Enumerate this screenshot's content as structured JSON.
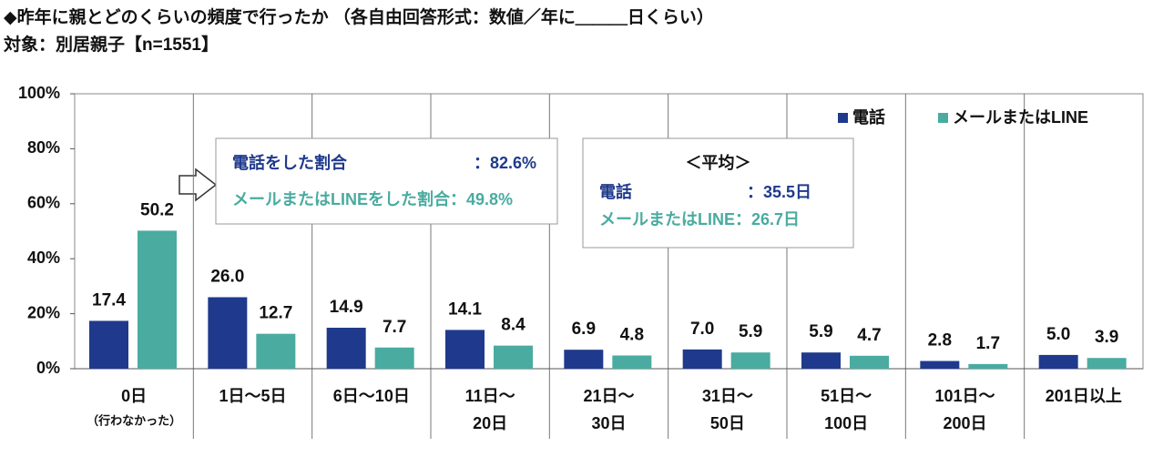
{
  "chart_data": {
    "type": "bar",
    "title": "◆昨年に親とどのくらいの頻度で行ったか （各自由回答形式：数値／年に＿＿＿日くらい）",
    "subtitle": "対象：別居親子【n=1551】",
    "categories": [
      [
        "0日",
        "（行わなかった）"
      ],
      [
        "1日～5日"
      ],
      [
        "6日～10日"
      ],
      [
        "11日～",
        "20日"
      ],
      [
        "21日～",
        "30日"
      ],
      [
        "31日～",
        "50日"
      ],
      [
        "51日～",
        "100日"
      ],
      [
        "101日～",
        "200日"
      ],
      [
        "201日以上"
      ]
    ],
    "series": [
      {
        "name": "電話",
        "color": "#1f3a8c",
        "values": [
          17.4,
          26.0,
          14.9,
          14.1,
          6.9,
          7.0,
          5.9,
          2.8,
          5.0
        ],
        "value_labels": [
          "17.4",
          "26.0",
          "14.9",
          "14.1",
          "6.9",
          "7.0",
          "5.9",
          "2.8",
          "5.0"
        ]
      },
      {
        "name": "メールまたはLINE",
        "color": "#4aaba0",
        "values": [
          50.2,
          12.7,
          7.7,
          8.4,
          4.8,
          5.9,
          4.7,
          1.7,
          3.9
        ],
        "value_labels": [
          "50.2",
          "12.7",
          "7.7",
          "8.4",
          "4.8",
          "5.9",
          "4.7",
          "1.7",
          "3.9"
        ]
      }
    ],
    "ylim": [
      0,
      100
    ],
    "yticks": [
      {
        "value": 0,
        "label": "0%"
      },
      {
        "value": 20,
        "label": "20%"
      },
      {
        "value": 40,
        "label": "40%"
      },
      {
        "value": 60,
        "label": "60%"
      },
      {
        "value": 80,
        "label": "80%"
      },
      {
        "value": 100,
        "label": "100%"
      }
    ],
    "grid": false,
    "legend": "top-right",
    "annotations": [
      {
        "heading": null,
        "rows": [
          {
            "label": "電話をした割合",
            "value": "：82.6%"
          },
          {
            "label": "メールまたはLINEをした割合",
            "value": "：49.8%"
          }
        ]
      },
      {
        "heading": "＜平均＞",
        "rows": [
          {
            "label": "電話",
            "value": "：35.5日"
          },
          {
            "label": "メールまたはLINE",
            "value": "：26.7日"
          }
        ]
      }
    ]
  }
}
